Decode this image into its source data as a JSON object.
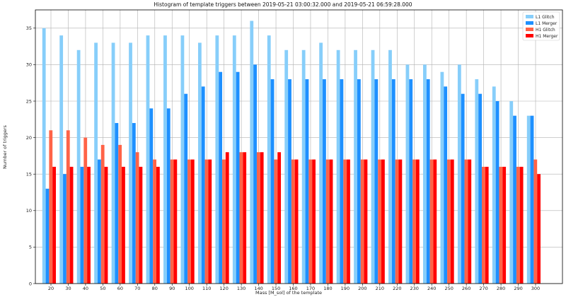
{
  "chart_data": {
    "type": "bar",
    "title": "Histogram of template triggers between 2019-05-21 03:00:32.000 and 2019-05-21 06:59:28.000",
    "xlabel": "Mass [M_sol] of the template",
    "ylabel": "Number of triggers",
    "ylim": [
      0,
      37.5
    ],
    "yticks": [
      0,
      5,
      10,
      15,
      20,
      25,
      30,
      35
    ],
    "grid": true,
    "legend_position": "top-right",
    "categories": [
      "20",
      "30",
      "40",
      "50",
      "60",
      "70",
      "80",
      "90",
      "100",
      "110",
      "120",
      "130",
      "140",
      "150",
      "160",
      "170",
      "180",
      "190",
      "200",
      "210",
      "220",
      "230",
      "240",
      "250",
      "260",
      "270",
      "280",
      "290",
      "300"
    ],
    "series": [
      {
        "name": "L1 Glitch",
        "color": "#87cefa",
        "values": [
          35,
          34,
          32,
          33,
          33,
          33,
          34,
          34,
          34,
          33,
          34,
          34,
          36,
          34,
          32,
          32,
          33,
          32,
          32,
          32,
          32,
          30,
          30,
          29,
          30,
          28,
          27,
          25,
          23
        ]
      },
      {
        "name": "L1 Merger",
        "color": "#1e90ff",
        "values": [
          13,
          15,
          16,
          17,
          22,
          22,
          24,
          24,
          26,
          27,
          29,
          29,
          30,
          28,
          28,
          28,
          28,
          28,
          28,
          28,
          28,
          28,
          28,
          27,
          26,
          26,
          25,
          23,
          23
        ]
      },
      {
        "name": "H1 Glitch",
        "color": "#ff6347",
        "values": [
          21,
          21,
          20,
          19,
          19,
          18,
          17,
          17,
          17,
          17,
          17,
          18,
          18,
          17,
          17,
          17,
          17,
          17,
          17,
          17,
          17,
          17,
          17,
          17,
          17,
          16,
          16,
          16,
          17
        ]
      },
      {
        "name": "H1 Merger",
        "color": "#ff0000",
        "values": [
          16,
          16,
          16,
          16,
          16,
          16,
          16,
          17,
          17,
          17,
          18,
          18,
          18,
          18,
          17,
          17,
          17,
          17,
          17,
          17,
          17,
          17,
          17,
          17,
          17,
          16,
          16,
          16,
          15
        ]
      }
    ]
  }
}
